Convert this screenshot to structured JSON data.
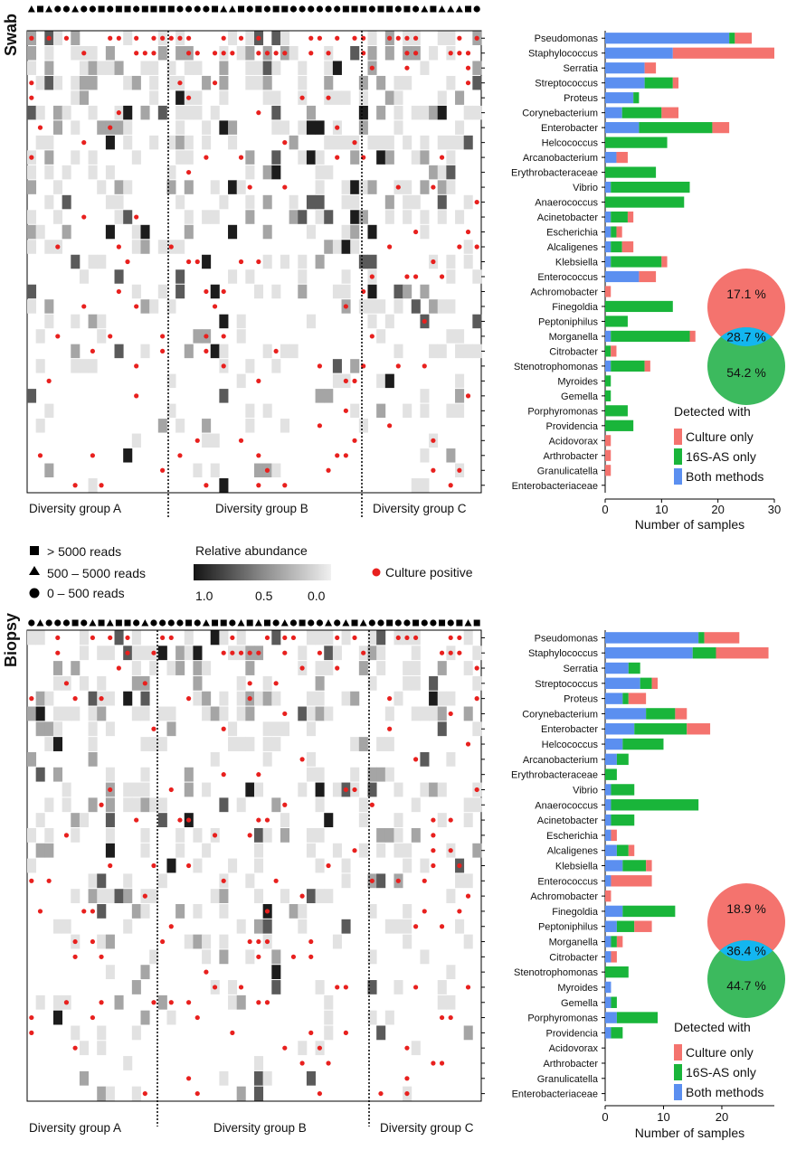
{
  "legend": {
    "reads_gt5000": "> 5000 reads",
    "reads_500_5000": "500 – 5000 reads",
    "reads_0_500": "0 – 500 reads",
    "relative_abundance": "Relative abundance",
    "scale_ticks": [
      "1.0",
      "0.5",
      "0.0"
    ],
    "culture_positive": "Culture positive"
  },
  "detected": {
    "title": "Detected with",
    "culture_only": "Culture only",
    "s16_only": "16S-AS only",
    "both": "Both methods"
  },
  "colors": {
    "culture_only": "#f4736e",
    "s16_only": "#19b53a",
    "both": "#5b8ff0",
    "dot": "#e8201e"
  },
  "x_axis_label": "Number of samples",
  "chart_data": [
    {
      "type": "bar",
      "panel": "Swab",
      "title": "Swab",
      "categories": [
        "Pseudomonas",
        "Staphylococcus",
        "Serratia",
        "Streptococcus",
        "Proteus",
        "Corynebacterium",
        "Enterobacter",
        "Helcococcus",
        "Arcanobacterium",
        "Erythrobacteraceae",
        "Vibrio",
        "Anaerococcus",
        "Acinetobacter",
        "Escherichia",
        "Alcaligenes",
        "Klebsiella",
        "Enterococcus",
        "Achromobacter",
        "Finegoldia",
        "Peptoniphilus",
        "Morganella",
        "Citrobacter",
        "Stenotrophomonas",
        "Myroides",
        "Gemella",
        "Porphyromonas",
        "Providencia",
        "Acidovorax",
        "Arthrobacter",
        "Granulicatella",
        "Enterobacteriaceae"
      ],
      "series": [
        {
          "name": "Both methods",
          "values": [
            22,
            12,
            7,
            7,
            5,
            3,
            6,
            0,
            2,
            0,
            1,
            0,
            1,
            1,
            1,
            1,
            6,
            0,
            0,
            0,
            1,
            0,
            1,
            0,
            0,
            0,
            0,
            0,
            0,
            0,
            0
          ]
        },
        {
          "name": "16S-AS only",
          "values": [
            1,
            0,
            0,
            5,
            1,
            7,
            13,
            11,
            0,
            9,
            14,
            14,
            3,
            1,
            2,
            9,
            0,
            0,
            12,
            4,
            14,
            1,
            6,
            1,
            1,
            4,
            5,
            0,
            0,
            0,
            0
          ]
        },
        {
          "name": "Culture only",
          "values": [
            3,
            18,
            2,
            1,
            0,
            3,
            3,
            0,
            2,
            0,
            0,
            0,
            1,
            1,
            2,
            1,
            3,
            1,
            0,
            0,
            1,
            1,
            1,
            0,
            0,
            0,
            0,
            1,
            1,
            1,
            0
          ]
        }
      ],
      "xlim": [
        0,
        30
      ],
      "xticks": [
        "0",
        "10",
        "20",
        "30"
      ],
      "xlabel": "Number of samples",
      "groups": [
        "Diversity group A",
        "Diversity group B",
        "Diversity group C"
      ],
      "venn": {
        "culture_pct": "17.1 %",
        "both_pct": "28.7 %",
        "s16_pct": "54.2 %"
      }
    },
    {
      "type": "bar",
      "panel": "Biopsy",
      "title": "Biopsy",
      "categories": [
        "Pseudomonas",
        "Staphylococcus",
        "Serratia",
        "Streptococcus",
        "Proteus",
        "Corynebacterium",
        "Enterobacter",
        "Helcococcus",
        "Arcanobacterium",
        "Erythrobacteraceae",
        "Vibrio",
        "Anaerococcus",
        "Acinetobacter",
        "Escherichia",
        "Alcaligenes",
        "Klebsiella",
        "Enterococcus",
        "Achromobacter",
        "Finegoldia",
        "Peptoniphilus",
        "Morganella",
        "Citrobacter",
        "Stenotrophomonas",
        "Myroides",
        "Gemella",
        "Porphyromonas",
        "Providencia",
        "Acidovorax",
        "Arthrobacter",
        "Granulicatella",
        "Enterobacteriaceae"
      ],
      "series": [
        {
          "name": "Both methods",
          "values": [
            16,
            15,
            4,
            6,
            3,
            7,
            5,
            3,
            2,
            0,
            1,
            1,
            1,
            1,
            2,
            3,
            1,
            0,
            3,
            2,
            1,
            1,
            0,
            1,
            1,
            2,
            1,
            0,
            0,
            0,
            0
          ]
        },
        {
          "name": "16S-AS only",
          "values": [
            1,
            4,
            2,
            2,
            1,
            5,
            9,
            7,
            2,
            2,
            4,
            15,
            4,
            0,
            2,
            4,
            0,
            0,
            9,
            3,
            1,
            0,
            4,
            0,
            1,
            7,
            2,
            0,
            0,
            0,
            0
          ]
        },
        {
          "name": "Culture only",
          "values": [
            6,
            9,
            0,
            1,
            3,
            2,
            4,
            0,
            0,
            0,
            0,
            0,
            0,
            1,
            1,
            1,
            7,
            1,
            0,
            3,
            1,
            1,
            0,
            0,
            0,
            0,
            0,
            0,
            0,
            0,
            0
          ]
        }
      ],
      "xlim": [
        0,
        29
      ],
      "xticks": [
        "0",
        "10",
        "20"
      ],
      "xlabel": "Number of samples",
      "groups": [
        "Diversity group A",
        "Diversity group B",
        "Diversity group C"
      ],
      "venn": {
        "culture_pct": "18.9 %",
        "both_pct": "36.4 %",
        "s16_pct": "44.7 %"
      }
    }
  ]
}
